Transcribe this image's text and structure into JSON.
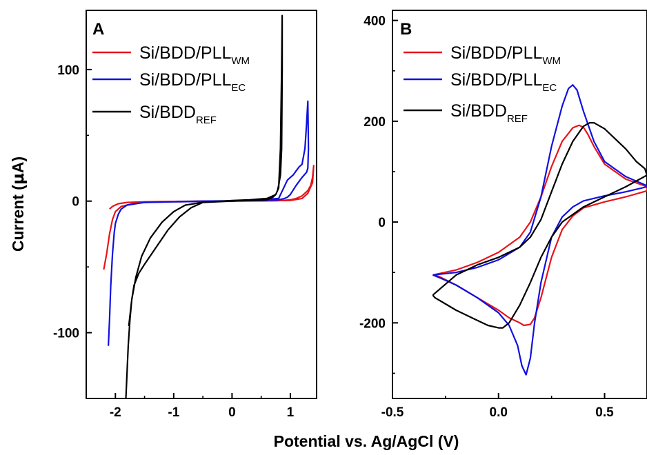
{
  "figure": {
    "xlabel": "Potential vs. Ag/AgCl (V)",
    "ylabel_prefix": "Current (",
    "ylabel_mu": "μ",
    "ylabel_suffix": "A)"
  },
  "colors": {
    "red": "#e8141b",
    "blue": "#1010e0",
    "black": "#000000"
  },
  "chart_data": [
    {
      "panel": "A",
      "type": "line",
      "xlim": [
        -2.5,
        1.45
      ],
      "ylim": [
        -150,
        145
      ],
      "xticks": [
        -2,
        -1,
        0,
        1
      ],
      "xtick_labels": [
        "-2",
        "-1",
        "0",
        "1"
      ],
      "yticks": [
        -100,
        0,
        100
      ],
      "ytick_labels": [
        "-100",
        "0",
        "100"
      ],
      "legend": [
        {
          "main": "Si/BDD/PLL",
          "sub": "WM",
          "color": "#e8141b"
        },
        {
          "main": "Si/BDD/PLL",
          "sub": "EC",
          "color": "#1010e0"
        },
        {
          "main": "Si/BDD",
          "sub": "REF",
          "color": "#000000"
        }
      ],
      "series": [
        {
          "color": "#e8141b",
          "x": [
            -2.2,
            -2.15,
            -2.1,
            -2.05,
            -2.0,
            -1.9,
            -1.7,
            -1.5,
            -1.0,
            0.0,
            0.8,
            1.0,
            1.1,
            1.2,
            1.3,
            1.35,
            1.38,
            1.4,
            1.38,
            1.3,
            1.2,
            1.0,
            0.5,
            -0.5,
            -1.5,
            -1.8,
            -1.95,
            -2.05,
            -2.1
          ],
          "y": [
            -52,
            -40,
            -25,
            -14,
            -8,
            -4,
            -2,
            -1,
            -0.5,
            0,
            0.3,
            1,
            2,
            4,
            8,
            12,
            18,
            27,
            14,
            6,
            2,
            0.5,
            0.2,
            0,
            -0.5,
            -1,
            -2,
            -4,
            -6
          ]
        },
        {
          "color": "#1010e0",
          "x": [
            -2.12,
            -2.1,
            -2.08,
            -2.05,
            -2.02,
            -2.0,
            -1.95,
            -1.9,
            -1.8,
            -1.5,
            -1.0,
            0.0,
            0.5,
            0.8,
            0.95,
            1.05,
            1.1,
            1.15,
            1.2,
            1.25,
            1.28,
            1.3,
            1.31,
            1.3,
            1.28,
            1.2,
            1.1,
            1.0,
            0.95,
            0.9,
            0.8,
            0.5,
            -0.5,
            -1.5,
            -1.8,
            -1.9,
            -1.95
          ],
          "y": [
            -110,
            -90,
            -65,
            -40,
            -24,
            -17,
            -10,
            -6,
            -3,
            -1,
            -0.5,
            0,
            1,
            2,
            16,
            20,
            23,
            26,
            28,
            40,
            60,
            76,
            40,
            25,
            22,
            18,
            12,
            5,
            3,
            2,
            1,
            0.5,
            0,
            -1,
            -3,
            -6,
            -10
          ]
        },
        {
          "color": "#000000",
          "x": [
            -1.82,
            -1.8,
            -1.78,
            -1.75,
            -1.72,
            -1.68,
            -1.6,
            -1.5,
            -1.3,
            -1.1,
            -0.9,
            -0.7,
            -0.5,
            0.0,
            0.3,
            0.6,
            0.75,
            0.8,
            0.83,
            0.85,
            0.86,
            0.86,
            0.85,
            0.83,
            0.8,
            0.78,
            0.75,
            0.7,
            0.6,
            0.3,
            0.0,
            -0.5,
            -0.8,
            -1.0,
            -1.2,
            -1.4,
            -1.55,
            -1.65,
            -1.72,
            -1.77
          ],
          "y": [
            -150,
            -130,
            -110,
            -90,
            -75,
            -64,
            -55,
            -48,
            -35,
            -22,
            -12,
            -5,
            -1,
            0.5,
            1,
            2,
            5,
            10,
            40,
            100,
            141,
            100,
            40,
            20,
            12,
            8,
            5,
            3,
            1,
            0.5,
            0,
            -1,
            -3,
            -8,
            -16,
            -28,
            -42,
            -58,
            -75,
            -95
          ]
        }
      ]
    },
    {
      "panel": "B",
      "type": "line",
      "xlim": [
        -0.5,
        0.7
      ],
      "ylim": [
        -350,
        420
      ],
      "xticks": [
        -0.5,
        0.0,
        0.5
      ],
      "xtick_labels": [
        "-0.5",
        "0.0",
        "0.5"
      ],
      "yticks": [
        -200,
        0,
        200,
        400
      ],
      "ytick_labels": [
        "-200",
        "0",
        "200",
        "400"
      ],
      "legend": [
        {
          "main": "Si/BDD/PLL",
          "sub": "WM",
          "color": "#e8141b"
        },
        {
          "main": "Si/BDD/PLL",
          "sub": "EC",
          "color": "#1010e0"
        },
        {
          "main": "Si/BDD",
          "sub": "REF",
          "color": "#000000"
        }
      ],
      "series": [
        {
          "color": "#e8141b",
          "x": [
            -0.31,
            -0.2,
            -0.1,
            0.0,
            0.1,
            0.15,
            0.2,
            0.25,
            0.3,
            0.35,
            0.38,
            0.4,
            0.42,
            0.45,
            0.5,
            0.6,
            0.7,
            0.7,
            0.6,
            0.5,
            0.4,
            0.35,
            0.3,
            0.25,
            0.2,
            0.17,
            0.15,
            0.12,
            0.1,
            0.05,
            0.0,
            -0.1,
            -0.2,
            -0.28,
            -0.31
          ],
          "y": [
            -105,
            -95,
            -80,
            -60,
            -30,
            0,
            50,
            110,
            160,
            187,
            192,
            188,
            175,
            150,
            115,
            85,
            70,
            62,
            50,
            40,
            28,
            12,
            -15,
            -70,
            -150,
            -190,
            -203,
            -205,
            -200,
            -190,
            -175,
            -150,
            -125,
            -108,
            -105
          ]
        },
        {
          "color": "#1010e0",
          "x": [
            -0.31,
            -0.2,
            -0.1,
            0.0,
            0.1,
            0.15,
            0.2,
            0.25,
            0.3,
            0.33,
            0.35,
            0.37,
            0.4,
            0.45,
            0.5,
            0.6,
            0.7,
            0.7,
            0.6,
            0.5,
            0.4,
            0.35,
            0.3,
            0.25,
            0.2,
            0.17,
            0.15,
            0.13,
            0.11,
            0.09,
            0.05,
            0.0,
            -0.1,
            -0.2,
            -0.28,
            -0.31
          ],
          "y": [
            -105,
            -100,
            -90,
            -75,
            -50,
            -20,
            50,
            150,
            230,
            265,
            272,
            262,
            220,
            160,
            120,
            90,
            72,
            70,
            60,
            52,
            42,
            30,
            10,
            -30,
            -120,
            -200,
            -270,
            -303,
            -285,
            -245,
            -205,
            -180,
            -150,
            -125,
            -110,
            -105
          ]
        },
        {
          "color": "#000000",
          "x": [
            -0.31,
            -0.2,
            -0.1,
            0.0,
            0.1,
            0.15,
            0.2,
            0.25,
            0.3,
            0.35,
            0.4,
            0.43,
            0.45,
            0.5,
            0.55,
            0.6,
            0.65,
            0.69,
            0.7,
            0.6,
            0.5,
            0.4,
            0.3,
            0.25,
            0.2,
            0.15,
            0.1,
            0.05,
            0.02,
            0.0,
            -0.05,
            -0.1,
            -0.2,
            -0.3,
            -0.31
          ],
          "y": [
            -145,
            -105,
            -85,
            -70,
            -50,
            -30,
            5,
            60,
            115,
            160,
            190,
            197,
            197,
            185,
            165,
            145,
            120,
            106,
            93,
            70,
            50,
            30,
            0,
            -30,
            -70,
            -120,
            -165,
            -200,
            -210,
            -210,
            -205,
            -195,
            -175,
            -150,
            -145
          ]
        }
      ]
    }
  ]
}
